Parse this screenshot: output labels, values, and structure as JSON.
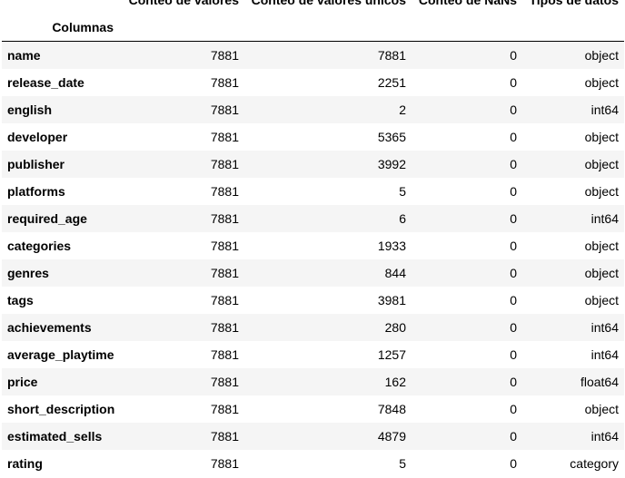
{
  "table": {
    "index_name": "Columnas",
    "columns": [
      "Conteo de valores",
      "Conteo de valores únicos",
      "Conteo de NaNs",
      "Tipos de datos"
    ],
    "rows": [
      {
        "label": "name",
        "count": "7881",
        "unique": "7881",
        "nans": "0",
        "dtype": "object"
      },
      {
        "label": "release_date",
        "count": "7881",
        "unique": "2251",
        "nans": "0",
        "dtype": "object"
      },
      {
        "label": "english",
        "count": "7881",
        "unique": "2",
        "nans": "0",
        "dtype": "int64"
      },
      {
        "label": "developer",
        "count": "7881",
        "unique": "5365",
        "nans": "0",
        "dtype": "object"
      },
      {
        "label": "publisher",
        "count": "7881",
        "unique": "3992",
        "nans": "0",
        "dtype": "object"
      },
      {
        "label": "platforms",
        "count": "7881",
        "unique": "5",
        "nans": "0",
        "dtype": "object"
      },
      {
        "label": "required_age",
        "count": "7881",
        "unique": "6",
        "nans": "0",
        "dtype": "int64"
      },
      {
        "label": "categories",
        "count": "7881",
        "unique": "1933",
        "nans": "0",
        "dtype": "object"
      },
      {
        "label": "genres",
        "count": "7881",
        "unique": "844",
        "nans": "0",
        "dtype": "object"
      },
      {
        "label": "tags",
        "count": "7881",
        "unique": "3981",
        "nans": "0",
        "dtype": "object"
      },
      {
        "label": "achievements",
        "count": "7881",
        "unique": "280",
        "nans": "0",
        "dtype": "int64"
      },
      {
        "label": "average_playtime",
        "count": "7881",
        "unique": "1257",
        "nans": "0",
        "dtype": "int64"
      },
      {
        "label": "price",
        "count": "7881",
        "unique": "162",
        "nans": "0",
        "dtype": "float64"
      },
      {
        "label": "short_description",
        "count": "7881",
        "unique": "7848",
        "nans": "0",
        "dtype": "object"
      },
      {
        "label": "estimated_sells",
        "count": "7881",
        "unique": "4879",
        "nans": "0",
        "dtype": "int64"
      },
      {
        "label": "rating",
        "count": "7881",
        "unique": "5",
        "nans": "0",
        "dtype": "category"
      }
    ]
  },
  "colors": {
    "stripe": "#f5f5f5",
    "background": "#ffffff",
    "text": "#000000"
  }
}
